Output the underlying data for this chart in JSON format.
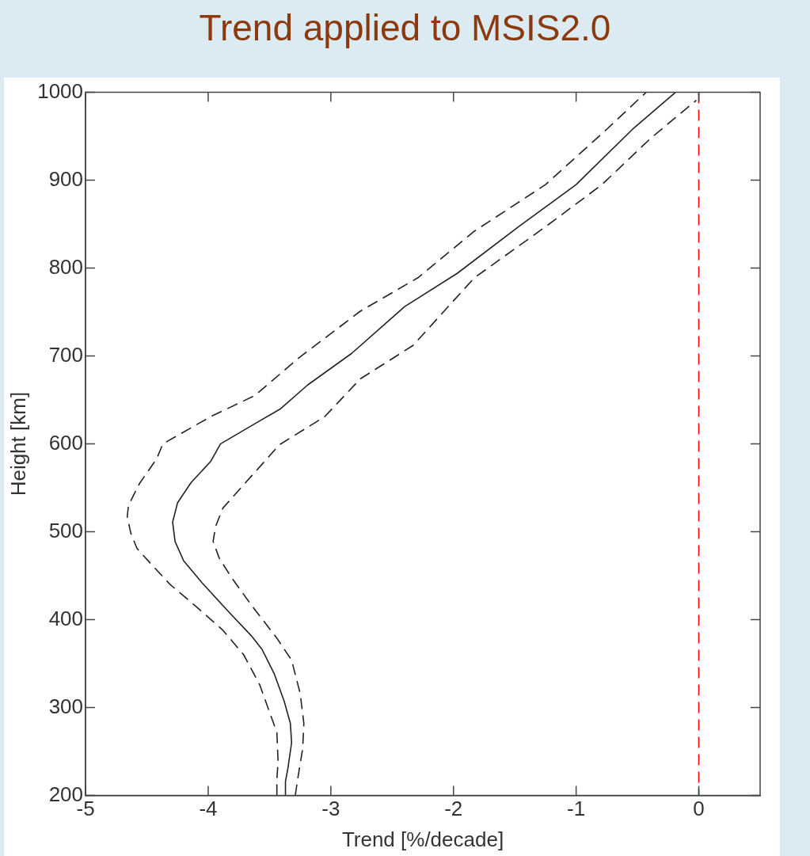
{
  "chart_data": {
    "type": "line",
    "title": "Trend applied to MSIS2.0",
    "xlabel": "Trend [%/decade]",
    "ylabel": "Height [km]",
    "xlim": [
      -5,
      0.5
    ],
    "xticks": [
      -5,
      -4,
      -3,
      -2,
      -1,
      0
    ],
    "ylim": [
      200,
      1000
    ],
    "yticks": [
      200,
      300,
      400,
      500,
      600,
      700,
      800,
      900,
      1000
    ],
    "grid": false,
    "legend": false,
    "marker": "none",
    "series": [
      {
        "color": "#222222",
        "line_style": "solid",
        "x": [
          -3.37,
          -3.37,
          -3.35,
          -3.32,
          -3.33,
          -3.38,
          -3.46,
          -3.56,
          -3.65,
          -3.84,
          -4.05,
          -4.2,
          -4.27,
          -4.29,
          -4.25,
          -4.14,
          -3.98,
          -3.9,
          -3.62,
          -3.41,
          -3.19,
          -2.83,
          -2.4,
          -1.97,
          -1.47,
          -1.0,
          -0.54,
          -0.19
        ],
        "values": [
          200,
          216,
          231,
          260,
          282,
          307,
          338,
          366,
          382,
          410,
          442,
          467,
          489,
          511,
          533,
          556,
          580,
          600,
          623,
          640,
          667,
          703,
          756,
          794,
          847,
          895,
          958,
          1000
        ]
      },
      {
        "color": "#222222",
        "line_style": "dashed",
        "x": [
          -3.44,
          -3.44,
          -3.43,
          -3.44,
          -3.49,
          -3.58,
          -3.71,
          -3.88,
          -4.09,
          -4.31,
          -4.47,
          -4.58,
          -4.63,
          -4.66,
          -4.65,
          -4.56,
          -4.42,
          -4.37,
          -3.98,
          -3.62,
          -3.26,
          -2.76,
          -2.29,
          -1.83,
          -1.25,
          -0.75,
          -0.43
        ],
        "values": [
          200,
          219,
          238,
          272,
          291,
          326,
          360,
          388,
          414,
          440,
          464,
          481,
          498,
          517,
          530,
          555,
          583,
          600,
          631,
          655,
          698,
          751,
          789,
          842,
          895,
          958,
          1000
        ]
      },
      {
        "color": "#222222",
        "line_style": "dashed",
        "x": [
          -3.29,
          -3.27,
          -3.23,
          -3.22,
          -3.25,
          -3.32,
          -3.44,
          -3.65,
          -3.81,
          -3.91,
          -3.96,
          -3.94,
          -3.88,
          -3.74,
          -3.56,
          -3.42,
          -3.05,
          -2.76,
          -2.33,
          -1.83,
          -1.25,
          -0.79,
          -0.39,
          -0.02
        ],
        "values": [
          200,
          219,
          253,
          282,
          316,
          354,
          379,
          417,
          448,
          470,
          489,
          506,
          527,
          549,
          577,
          599,
          631,
          674,
          712,
          789,
          847,
          895,
          948,
          991
        ]
      }
    ],
    "ref_lines": [
      {
        "axis": "x",
        "value": 0,
        "color": "#ff0000",
        "line_style": "dashed"
      }
    ]
  }
}
